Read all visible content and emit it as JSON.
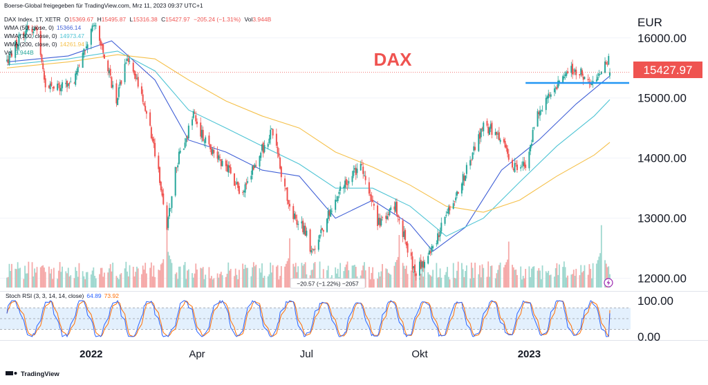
{
  "header": {
    "credit": "Boerse-Global freigegeben für TradingView.com, Mrz 11, 2023 09:37 UTC+1"
  },
  "legend": {
    "symbol": "DAX Index, 1T, XETR",
    "ohlc": [
      {
        "k": "O",
        "v": "15369.67"
      },
      {
        "k": "H",
        "v": "15495.87"
      },
      {
        "k": "L",
        "v": "15316.38"
      },
      {
        "k": "C",
        "v": "15427.97"
      }
    ],
    "change": "−205.24 (−1.31%)",
    "vol_label": "Vol",
    "vol_value": "3.944B",
    "wma50": {
      "label": "WMA (50, close, 0)",
      "value": "15366.14"
    },
    "wma100": {
      "label": "WMA (100, close, 0)",
      "value": "14973.47"
    },
    "wma200": {
      "label": "WMA (200, close, 0)",
      "value": "14261.94"
    },
    "vol2": {
      "label": "Vol",
      "value": "3.944B"
    },
    "stoch": {
      "label": "Stoch RSI (3, 3, 14, 14, close)",
      "k": "64.89",
      "d": "73.92"
    }
  },
  "annotations": {
    "title": "DAX",
    "tooltip": "−20.57 (−1.22%) −2057"
  },
  "price_axis": {
    "unit": "EUR",
    "last_price": "15427.97"
  },
  "footer": {
    "brand": "TradingView"
  },
  "colors": {
    "up": "#26a69a",
    "down": "#ef5350",
    "vol_up": "#9fd8cf",
    "vol_down": "#f5a9a8",
    "wma50": "#3f5fd6",
    "wma100": "#4ec4d4",
    "wma200": "#f5c04a",
    "support": "#2196f3",
    "title": "#ef5350",
    "stoch_k": "#2962ff",
    "stoch_d": "#ff6d00"
  },
  "chart_data": {
    "type": "candlestick",
    "symbol": "DAX Index",
    "interval": "1T",
    "price_axis": {
      "min": 11800,
      "max": 16400,
      "ticks": [
        "16000.00",
        "15000.00",
        "14000.00",
        "13000.00",
        "12000.00"
      ],
      "tick_values": [
        16000,
        15000,
        14000,
        13000,
        12000
      ]
    },
    "time_axis": {
      "labels": [
        {
          "text": "2022",
          "date": "2022-01-03",
          "bold": true
        },
        {
          "text": "Apr",
          "date": "2022-04-01",
          "bold": false
        },
        {
          "text": "Jul",
          "date": "2022-07-01",
          "bold": false
        },
        {
          "text": "Okt",
          "date": "2022-10-03",
          "bold": false
        },
        {
          "text": "2023",
          "date": "2023-01-02",
          "bold": true
        }
      ]
    },
    "time_range": [
      "2021-10-25",
      "2023-03-10"
    ],
    "close_path": [
      [
        "2021-10-25",
        15600
      ],
      [
        "2021-11-05",
        16050
      ],
      [
        "2021-11-18",
        16200
      ],
      [
        "2021-11-26",
        15260
      ],
      [
        "2021-12-03",
        15170
      ],
      [
        "2021-12-20",
        15300
      ],
      [
        "2021-12-30",
        15880
      ],
      [
        "2022-01-05",
        16250
      ],
      [
        "2022-01-24",
        15000
      ],
      [
        "2022-02-02",
        15650
      ],
      [
        "2022-02-14",
        15100
      ],
      [
        "2022-02-24",
        14200
      ],
      [
        "2022-03-03",
        13400
      ],
      [
        "2022-03-07",
        12840
      ],
      [
        "2022-03-15",
        13900
      ],
      [
        "2022-03-29",
        14700
      ],
      [
        "2022-04-08",
        14250
      ],
      [
        "2022-04-27",
        13800
      ],
      [
        "2022-05-09",
        13400
      ],
      [
        "2022-05-20",
        13950
      ],
      [
        "2022-06-03",
        14460
      ],
      [
        "2022-06-10",
        13750
      ],
      [
        "2022-06-17",
        13130
      ],
      [
        "2022-06-30",
        12780
      ],
      [
        "2022-07-06",
        12400
      ],
      [
        "2022-07-15",
        12860
      ],
      [
        "2022-07-29",
        13480
      ],
      [
        "2022-08-16",
        13900
      ],
      [
        "2022-08-29",
        12900
      ],
      [
        "2022-09-13",
        13190
      ],
      [
        "2022-09-29",
        12100
      ],
      [
        "2022-10-07",
        12270
      ],
      [
        "2022-10-17",
        12650
      ],
      [
        "2022-11-04",
        13460
      ],
      [
        "2022-11-25",
        14540
      ],
      [
        "2022-12-05",
        14450
      ],
      [
        "2022-12-20",
        13880
      ],
      [
        "2022-12-30",
        13920
      ],
      [
        "2023-01-10",
        14780
      ],
      [
        "2023-01-20",
        15050
      ],
      [
        "2023-02-02",
        15510
      ],
      [
        "2023-02-14",
        15400
      ],
      [
        "2023-02-24",
        15200
      ],
      [
        "2023-03-06",
        15650
      ],
      [
        "2023-03-09",
        15633
      ],
      [
        "2023-03-10",
        15427.97
      ]
    ],
    "last_price": 15427.97,
    "support_level": 15250,
    "support_range": [
      "2022-12-30",
      "2023-03-10"
    ],
    "wma": [
      {
        "name": "WMA (50, close, 0)",
        "color": "#3f5fd6",
        "points": [
          [
            "2021-10-25",
            15600
          ],
          [
            "2021-12-15",
            15700
          ],
          [
            "2022-01-20",
            15950
          ],
          [
            "2022-02-25",
            15300
          ],
          [
            "2022-03-25",
            14300
          ],
          [
            "2022-04-25",
            14100
          ],
          [
            "2022-05-25",
            13800
          ],
          [
            "2022-06-25",
            13700
          ],
          [
            "2022-07-25",
            13000
          ],
          [
            "2022-08-25",
            13300
          ],
          [
            "2022-09-25",
            12900
          ],
          [
            "2022-10-14",
            12450
          ],
          [
            "2022-11-10",
            12850
          ],
          [
            "2022-12-10",
            13800
          ],
          [
            "2023-01-10",
            14300
          ],
          [
            "2023-02-10",
            14900
          ],
          [
            "2023-03-10",
            15366
          ]
        ]
      },
      {
        "name": "WMA (100, close, 0)",
        "color": "#4ec4d4",
        "points": [
          [
            "2021-10-25",
            15550
          ],
          [
            "2021-12-15",
            15650
          ],
          [
            "2022-01-25",
            15780
          ],
          [
            "2022-02-25",
            15450
          ],
          [
            "2022-03-25",
            14800
          ],
          [
            "2022-04-25",
            14500
          ],
          [
            "2022-05-25",
            14200
          ],
          [
            "2022-06-25",
            13900
          ],
          [
            "2022-07-25",
            13500
          ],
          [
            "2022-08-25",
            13500
          ],
          [
            "2022-09-25",
            13200
          ],
          [
            "2022-10-25",
            12700
          ],
          [
            "2022-11-25",
            13000
          ],
          [
            "2022-12-25",
            13600
          ],
          [
            "2023-01-25",
            14200
          ],
          [
            "2023-02-25",
            14700
          ],
          [
            "2023-03-10",
            14973
          ]
        ]
      },
      {
        "name": "WMA (200, close, 0)",
        "color": "#f5c04a",
        "points": [
          [
            "2021-10-25",
            15500
          ],
          [
            "2021-12-15",
            15600
          ],
          [
            "2022-01-25",
            15720
          ],
          [
            "2022-02-25",
            15650
          ],
          [
            "2022-03-25",
            15300
          ],
          [
            "2022-04-25",
            14950
          ],
          [
            "2022-05-25",
            14700
          ],
          [
            "2022-06-25",
            14500
          ],
          [
            "2022-07-25",
            14100
          ],
          [
            "2022-08-25",
            13850
          ],
          [
            "2022-09-25",
            13550
          ],
          [
            "2022-10-25",
            13200
          ],
          [
            "2022-11-25",
            13100
          ],
          [
            "2022-12-25",
            13300
          ],
          [
            "2023-01-25",
            13700
          ],
          [
            "2023-02-25",
            14050
          ],
          [
            "2023-03-10",
            14262
          ]
        ]
      }
    ],
    "volume": {
      "last": "3.944B",
      "spikes": [
        {
          "date": "2022-03-07",
          "relative": 1.0
        },
        {
          "date": "2022-06-17",
          "relative": 0.75
        },
        {
          "date": "2022-09-16",
          "relative": 0.8
        },
        {
          "date": "2022-12-16",
          "relative": 0.7
        },
        {
          "date": "2023-03-03",
          "relative": 0.95
        }
      ]
    },
    "stoch_rsi": {
      "params": "3, 3, 14, 14, close",
      "k_last": 64.89,
      "d_last": 73.92,
      "range": [
        0,
        100
      ],
      "band": [
        20,
        80
      ],
      "ticks": [
        "100.00",
        "0.00"
      ],
      "tick_values": [
        100,
        0
      ]
    }
  }
}
